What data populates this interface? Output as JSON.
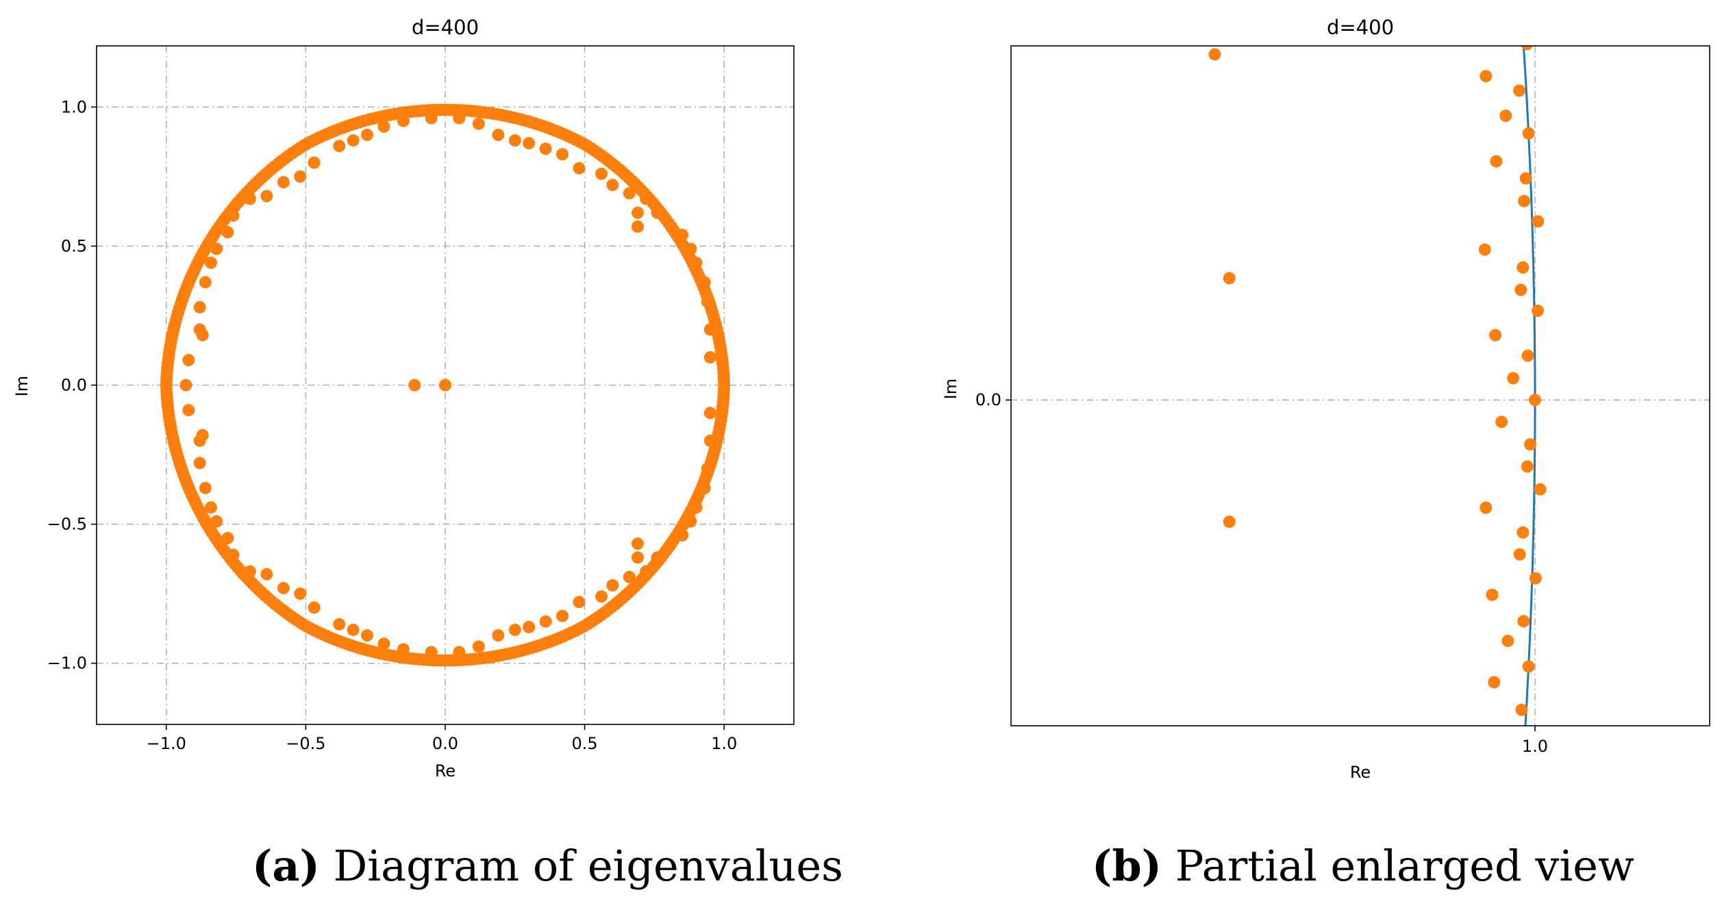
{
  "chart_data": [
    {
      "type": "scatter",
      "title": "d=400",
      "xlabel": "Re",
      "ylabel": "Im",
      "xlim": [
        -1.25,
        1.25
      ],
      "ylim": [
        -1.22,
        1.22
      ],
      "xticks": [
        -1.0,
        -0.5,
        0.0,
        0.5,
        1.0
      ],
      "xtick_labels": [
        "−1.0",
        "−0.5",
        "0.0",
        "0.5",
        "1.0"
      ],
      "yticks": [
        -1.0,
        -0.5,
        0.0,
        0.5,
        1.0
      ],
      "ytick_labels": [
        "−1.0",
        "−0.5",
        "0.0",
        "0.5",
        "1.0"
      ],
      "grid": true,
      "point_color": "#ff7f0e",
      "series": [
        {
          "description_of_points": "dense ring of eigenvalues on unit circle, inner ring at radius about 0.93, two points near origin",
          "outer_ring_radius": 1.0,
          "outer_ring_count": 400,
          "inner_ring": [
            [
              0.95,
              0.2
            ],
            [
              0.94,
              0.3
            ],
            [
              0.93,
              0.37
            ],
            [
              0.9,
              0.44
            ],
            [
              0.88,
              0.49
            ],
            [
              0.85,
              0.54
            ],
            [
              0.81,
              0.57
            ],
            [
              0.76,
              0.62
            ],
            [
              0.72,
              0.67
            ],
            [
              0.69,
              0.62
            ],
            [
              0.69,
              0.57
            ],
            [
              0.66,
              0.69
            ],
            [
              0.6,
              0.72
            ],
            [
              0.56,
              0.76
            ],
            [
              0.48,
              0.78
            ],
            [
              0.42,
              0.83
            ],
            [
              0.36,
              0.85
            ],
            [
              0.3,
              0.87
            ],
            [
              0.25,
              0.88
            ],
            [
              0.19,
              0.9
            ],
            [
              0.12,
              0.94
            ],
            [
              0.05,
              0.96
            ],
            [
              -0.05,
              0.96
            ],
            [
              -0.15,
              0.95
            ],
            [
              -0.22,
              0.93
            ],
            [
              -0.28,
              0.9
            ],
            [
              -0.33,
              0.88
            ],
            [
              -0.38,
              0.86
            ],
            [
              -0.47,
              0.8
            ],
            [
              -0.52,
              0.75
            ],
            [
              -0.58,
              0.73
            ],
            [
              -0.64,
              0.68
            ],
            [
              -0.7,
              0.67
            ],
            [
              -0.76,
              0.61
            ],
            [
              -0.78,
              0.55
            ],
            [
              -0.82,
              0.49
            ],
            [
              -0.84,
              0.44
            ],
            [
              -0.86,
              0.37
            ],
            [
              -0.88,
              0.28
            ],
            [
              -0.88,
              0.2
            ],
            [
              -0.87,
              0.18
            ],
            [
              -0.92,
              0.09
            ],
            [
              -0.93,
              0.0
            ],
            [
              -0.92,
              -0.09
            ],
            [
              -0.87,
              -0.18
            ],
            [
              -0.88,
              -0.2
            ],
            [
              -0.88,
              -0.28
            ],
            [
              -0.86,
              -0.37
            ],
            [
              -0.84,
              -0.44
            ],
            [
              -0.82,
              -0.49
            ],
            [
              -0.78,
              -0.55
            ],
            [
              -0.76,
              -0.61
            ],
            [
              -0.7,
              -0.67
            ],
            [
              -0.64,
              -0.68
            ],
            [
              -0.58,
              -0.73
            ],
            [
              -0.52,
              -0.75
            ],
            [
              -0.47,
              -0.8
            ],
            [
              -0.38,
              -0.86
            ],
            [
              -0.33,
              -0.88
            ],
            [
              -0.28,
              -0.9
            ],
            [
              -0.22,
              -0.93
            ],
            [
              -0.15,
              -0.95
            ],
            [
              -0.05,
              -0.96
            ],
            [
              0.05,
              -0.96
            ],
            [
              0.12,
              -0.94
            ],
            [
              0.19,
              -0.9
            ],
            [
              0.25,
              -0.88
            ],
            [
              0.3,
              -0.87
            ],
            [
              0.36,
              -0.85
            ],
            [
              0.42,
              -0.83
            ],
            [
              0.48,
              -0.78
            ],
            [
              0.56,
              -0.76
            ],
            [
              0.6,
              -0.72
            ],
            [
              0.66,
              -0.69
            ],
            [
              0.69,
              -0.57
            ],
            [
              0.69,
              -0.62
            ],
            [
              0.72,
              -0.67
            ],
            [
              0.76,
              -0.62
            ],
            [
              0.81,
              -0.57
            ],
            [
              0.85,
              -0.54
            ],
            [
              0.88,
              -0.49
            ],
            [
              0.9,
              -0.44
            ],
            [
              0.93,
              -0.37
            ],
            [
              0.94,
              -0.3
            ],
            [
              0.95,
              -0.2
            ],
            [
              0.95,
              -0.1
            ],
            [
              0.95,
              0.1
            ]
          ],
          "center_points": [
            [
              -0.11,
              0.0
            ],
            [
              0.0,
              0.0
            ]
          ]
        }
      ]
    },
    {
      "type": "scatter",
      "title": "d=400",
      "xlabel": "Re",
      "ylabel": "Im",
      "xticks": [
        1.0
      ],
      "xtick_labels": [
        "1.0"
      ],
      "yticks": [
        0.0
      ],
      "ytick_labels": [
        "0.0"
      ],
      "grid": true,
      "point_color": "#ff7f0e",
      "line_color": "#1f77b4",
      "curve": "unit circle arc",
      "x_range_fraction": [
        -1.0,
        0.48
      ],
      "y_range_fraction": [
        -1.0,
        1.08
      ]
    }
  ],
  "captions": {
    "a_tag": "(a)",
    "a_text": "Diagram of eigenvalues",
    "b_tag": "(b)",
    "b_text": "Partial enlarged view"
  }
}
